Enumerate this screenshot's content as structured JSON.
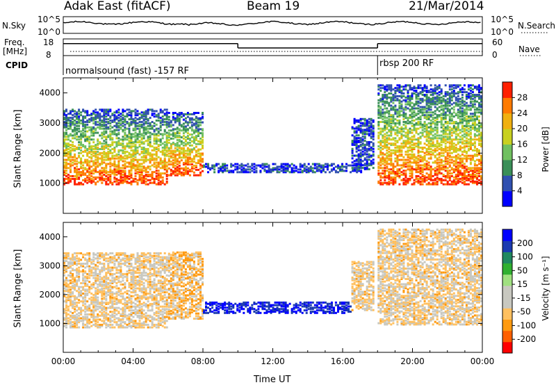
{
  "header": {
    "station": "Adak East (fitACF)",
    "beam": "Beam 19",
    "date": "21/Mar/2014"
  },
  "top_panels": {
    "nsky_label": "N.Sky",
    "nsky_ticks": [
      "10^5",
      "10^0"
    ],
    "nsearch_label": "N.Search",
    "nsearch_ticks": [
      "10^5",
      "10^0"
    ],
    "freq_label": "Freq.",
    "freq_unit": "[MHz]",
    "freq_ticks": [
      "18",
      "8"
    ],
    "nave_label": "Nave",
    "nave_ticks": [
      "60",
      "0"
    ],
    "cpid_label": "CPID",
    "cpid_segments": [
      {
        "text": "normalsound (fast) -157 RF",
        "start_hour": 0,
        "end_hour": 18
      },
      {
        "text": "rbsp 200 RF",
        "start_hour": 18,
        "end_hour": 24
      }
    ],
    "freq_steps": [
      {
        "start_hour": 0,
        "end_hour": 10,
        "level": 0.72
      },
      {
        "start_hour": 10,
        "end_hour": 18,
        "level": 0.46
      },
      {
        "start_hour": 18,
        "end_hour": 24,
        "level": 0.72
      }
    ]
  },
  "xaxis": {
    "title": "Time UT",
    "ticks": [
      "00:00",
      "04:00",
      "08:00",
      "12:00",
      "16:00",
      "20:00",
      "00:00"
    ]
  },
  "colors": {
    "power": [
      "#0000ff",
      "#3050b0",
      "#3a8f58",
      "#70c060",
      "#c8d020",
      "#f0b010",
      "#ff7a00",
      "#ff2000"
    ],
    "velocity": [
      "#ff0000",
      "#ff6000",
      "#ff9a10",
      "#ffc060",
      "#c8c8c0",
      "#c8c8c0",
      "#a0e080",
      "#30b030",
      "#208860",
      "#1a3ab0",
      "#0000ff"
    ]
  },
  "chart_data": [
    {
      "type": "heatmap",
      "panel": "power",
      "title": "",
      "xlabel": "Time UT",
      "ylabel": "Slant Range [km]",
      "xlim": [
        0,
        24
      ],
      "ylim": [
        0,
        4500
      ],
      "yticks": [
        "1000",
        "2000",
        "3000",
        "4000"
      ],
      "colorbar_label": "Power [dB]",
      "colorbar_ticks": [
        "4",
        "8",
        "12",
        "16",
        "20",
        "24",
        "28"
      ],
      "echo_regions": [
        {
          "start": 0.0,
          "end": 6.0,
          "range_low": 1000,
          "range_high": 3500
        },
        {
          "start": 6.0,
          "end": 8.0,
          "range_low": 1300,
          "range_high": 3400
        },
        {
          "start": 8.0,
          "end": 17.0,
          "range_low": 1400,
          "range_high": 1700
        },
        {
          "start": 16.5,
          "end": 17.8,
          "range_low": 1500,
          "range_high": 3200
        },
        {
          "start": 18.0,
          "end": 24.0,
          "range_low": 1000,
          "range_high": 4300
        }
      ]
    },
    {
      "type": "heatmap",
      "panel": "velocity",
      "title": "",
      "xlabel": "Time UT",
      "ylabel": "Slant Range [km]",
      "xlim": [
        0,
        24
      ],
      "ylim": [
        0,
        4500
      ],
      "yticks": [
        "1000",
        "2000",
        "3000",
        "4000"
      ],
      "colorbar_label": "Velocity [m s⁻¹]",
      "colorbar_ticks": [
        "200",
        "100",
        "50",
        "15",
        "-15",
        "-50",
        "-100",
        "-200"
      ],
      "echo_regions": [
        {
          "start": 0.0,
          "end": 6.0,
          "range_low": 900,
          "range_high": 3500
        },
        {
          "start": 6.0,
          "end": 8.0,
          "range_low": 1200,
          "range_high": 3500
        },
        {
          "start": 8.0,
          "end": 16.5,
          "range_low": 1400,
          "range_high": 1800
        },
        {
          "start": 16.5,
          "end": 17.8,
          "range_low": 1500,
          "range_high": 3200
        },
        {
          "start": 18.0,
          "end": 24.0,
          "range_low": 1000,
          "range_high": 4300
        }
      ]
    }
  ]
}
